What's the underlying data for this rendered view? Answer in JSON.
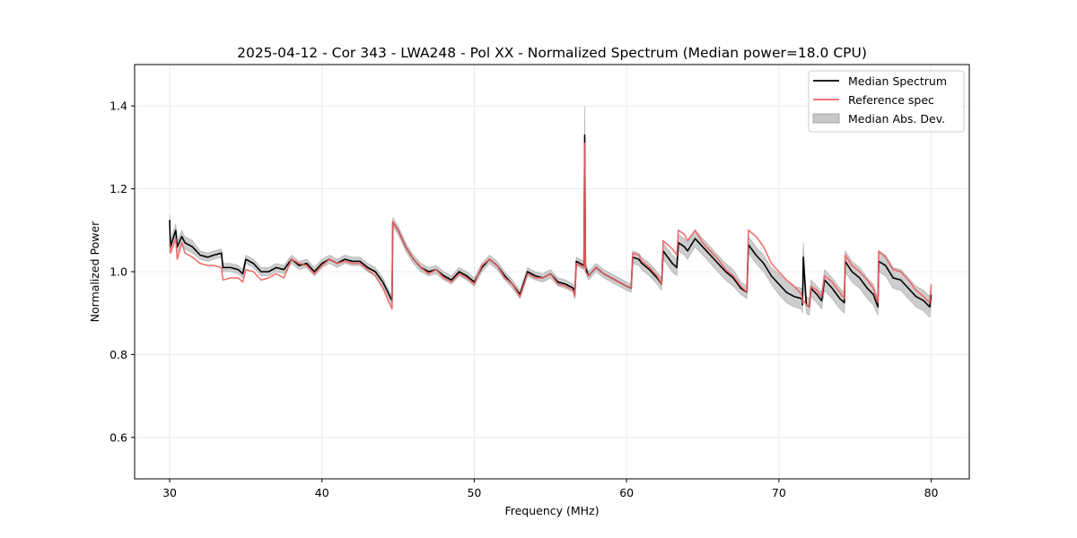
{
  "chart_data": {
    "type": "line",
    "title": "2025-04-12 - Cor 343 - LWA248 - Pol XX - Normalized Spectrum (Median power=18.0 CPU)",
    "xlabel": "Frequency (MHz)",
    "ylabel": "Normalized Power",
    "xlim": [
      27.7,
      82.5
    ],
    "ylim": [
      0.5,
      1.5
    ],
    "xticks": [
      30,
      40,
      50,
      60,
      70,
      80
    ],
    "yticks": [
      0.6,
      0.8,
      1.0,
      1.2,
      1.4
    ],
    "grid": true,
    "legend_position": "top-right",
    "legend": [
      "Median Spectrum",
      "Reference spec",
      "Median Abs. Dev."
    ],
    "colors": {
      "median": "#000000",
      "reference": "#f05f5f",
      "mad": "#c8c8c8",
      "mad_edge": "#a8a8a8"
    },
    "x": [
      30.0,
      30.05,
      30.4,
      30.5,
      30.8,
      31.0,
      31.5,
      32.0,
      32.5,
      32.9,
      33.4,
      33.5,
      34.0,
      34.5,
      34.8,
      35.0,
      35.5,
      36.0,
      36.5,
      37.0,
      37.5,
      38.0,
      38.5,
      39.0,
      39.5,
      40.0,
      40.5,
      41.0,
      41.5,
      42.0,
      42.5,
      43.0,
      43.5,
      44.0,
      44.6,
      44.65,
      45.0,
      45.5,
      46.0,
      46.5,
      47.0,
      47.5,
      48.0,
      48.5,
      49.0,
      49.5,
      50.0,
      50.5,
      51.0,
      51.5,
      52.0,
      52.5,
      53.0,
      53.5,
      54.0,
      54.5,
      55.0,
      55.5,
      56.0,
      56.5,
      56.6,
      56.7,
      57.2,
      57.25,
      57.3,
      57.5,
      58.0,
      58.5,
      59.0,
      59.5,
      60.0,
      60.3,
      60.4,
      60.8,
      61.0,
      61.5,
      62.0,
      62.3,
      62.4,
      63.0,
      63.3,
      63.4,
      63.8,
      64.0,
      64.5,
      65.0,
      65.5,
      66.0,
      66.5,
      67.0,
      67.5,
      67.9,
      68.0,
      68.5,
      69.0,
      69.5,
      70.0,
      70.5,
      71.0,
      71.5,
      71.55,
      71.6,
      71.8,
      72.0,
      72.1,
      72.5,
      72.8,
      73.0,
      73.5,
      74.0,
      74.3,
      74.35,
      74.8,
      75.3,
      75.8,
      76.2,
      76.5,
      76.55,
      77.0,
      77.5,
      78.0,
      78.5,
      79.0,
      79.5,
      79.9,
      80.0
    ],
    "series": [
      {
        "name": "Median Spectrum",
        "values": [
          1.125,
          1.06,
          1.1,
          1.06,
          1.085,
          1.07,
          1.06,
          1.04,
          1.035,
          1.04,
          1.045,
          1.01,
          1.01,
          1.005,
          0.995,
          1.03,
          1.02,
          1.0,
          1.0,
          1.01,
          1.005,
          1.03,
          1.015,
          1.02,
          1.0,
          1.02,
          1.03,
          1.02,
          1.03,
          1.025,
          1.025,
          1.01,
          1.0,
          0.975,
          0.93,
          1.12,
          1.1,
          1.06,
          1.03,
          1.01,
          1.0,
          1.005,
          0.99,
          0.98,
          1.0,
          0.99,
          0.975,
          1.01,
          1.03,
          1.015,
          0.99,
          0.97,
          0.945,
          1.0,
          0.99,
          0.985,
          0.995,
          0.975,
          0.97,
          0.96,
          0.945,
          1.025,
          1.015,
          1.33,
          1.01,
          0.99,
          1.01,
          0.995,
          0.985,
          0.975,
          0.965,
          0.96,
          1.035,
          1.03,
          1.02,
          1.005,
          0.985,
          0.97,
          1.05,
          1.02,
          1.01,
          1.07,
          1.06,
          1.05,
          1.08,
          1.06,
          1.04,
          1.02,
          1.0,
          0.985,
          0.96,
          0.95,
          1.065,
          1.04,
          1.02,
          0.99,
          0.97,
          0.95,
          0.94,
          0.935,
          0.92,
          1.035,
          0.92,
          0.915,
          0.96,
          0.945,
          0.93,
          0.98,
          0.96,
          0.935,
          0.925,
          1.025,
          1.0,
          0.985,
          0.96,
          0.945,
          0.915,
          1.025,
          1.015,
          0.985,
          0.98,
          0.96,
          0.94,
          0.93,
          0.915,
          0.945
        ]
      },
      {
        "name": "Reference spec",
        "values": [
          1.07,
          1.045,
          1.08,
          1.03,
          1.07,
          1.045,
          1.035,
          1.02,
          1.015,
          1.015,
          1.01,
          0.98,
          0.985,
          0.985,
          0.975,
          1.005,
          1.0,
          0.98,
          0.985,
          0.995,
          0.985,
          1.03,
          1.02,
          1.015,
          0.995,
          1.015,
          1.03,
          1.02,
          1.025,
          1.02,
          1.02,
          1.005,
          0.99,
          0.96,
          0.91,
          1.12,
          1.1,
          1.06,
          1.03,
          1.01,
          0.995,
          1.005,
          0.985,
          0.975,
          0.995,
          0.985,
          0.97,
          1.015,
          1.03,
          1.015,
          0.985,
          0.97,
          0.94,
          0.995,
          0.985,
          0.985,
          0.995,
          0.97,
          0.965,
          0.955,
          0.94,
          1.02,
          1.01,
          1.31,
          1.0,
          0.99,
          1.01,
          0.995,
          0.985,
          0.975,
          0.965,
          0.96,
          1.045,
          1.04,
          1.025,
          1.01,
          0.99,
          0.97,
          1.075,
          1.055,
          1.04,
          1.1,
          1.09,
          1.075,
          1.1,
          1.07,
          1.05,
          1.03,
          1.005,
          0.99,
          0.965,
          0.95,
          1.1,
          1.085,
          1.06,
          1.02,
          1.0,
          0.98,
          0.965,
          0.945,
          0.925,
          0.93,
          0.92,
          0.915,
          0.965,
          0.955,
          0.94,
          0.99,
          0.975,
          0.95,
          0.935,
          1.04,
          1.015,
          1.0,
          0.98,
          0.96,
          0.925,
          1.05,
          1.035,
          1.005,
          1.0,
          0.98,
          0.955,
          0.94,
          0.925,
          0.97
        ]
      }
    ],
    "mad_band": {
      "lower": [
        1.11,
        1.045,
        1.085,
        1.045,
        1.07,
        1.055,
        1.045,
        1.03,
        1.025,
        1.03,
        1.035,
        1.0,
        1.0,
        0.995,
        0.985,
        1.02,
        1.01,
        0.99,
        0.99,
        1.0,
        0.995,
        1.02,
        1.005,
        1.01,
        0.99,
        1.01,
        1.02,
        1.01,
        1.02,
        1.015,
        1.015,
        1.0,
        0.99,
        0.965,
        0.92,
        1.11,
        1.09,
        1.05,
        1.02,
        1.0,
        0.99,
        0.995,
        0.98,
        0.97,
        0.99,
        0.98,
        0.965,
        1.0,
        1.02,
        1.005,
        0.98,
        0.96,
        0.935,
        0.99,
        0.98,
        0.975,
        0.985,
        0.965,
        0.96,
        0.95,
        0.935,
        1.015,
        1.005,
        1.26,
        1.0,
        0.98,
        1.0,
        0.985,
        0.975,
        0.965,
        0.955,
        0.95,
        1.02,
        1.015,
        1.005,
        0.99,
        0.97,
        0.955,
        1.03,
        1.0,
        0.99,
        1.05,
        1.04,
        1.03,
        1.06,
        1.04,
        1.02,
        1.0,
        0.98,
        0.965,
        0.945,
        0.935,
        1.045,
        1.02,
        1.0,
        0.97,
        0.945,
        0.925,
        0.915,
        0.91,
        0.9,
        1.0,
        0.9,
        0.895,
        0.94,
        0.925,
        0.91,
        0.955,
        0.935,
        0.91,
        0.9,
        1.0,
        0.975,
        0.96,
        0.935,
        0.92,
        0.895,
        1.0,
        0.99,
        0.96,
        0.955,
        0.935,
        0.915,
        0.905,
        0.89,
        0.925
      ],
      "upper": [
        1.14,
        1.075,
        1.115,
        1.075,
        1.1,
        1.085,
        1.075,
        1.05,
        1.045,
        1.05,
        1.055,
        1.02,
        1.02,
        1.015,
        1.005,
        1.04,
        1.03,
        1.01,
        1.01,
        1.02,
        1.015,
        1.04,
        1.025,
        1.03,
        1.01,
        1.03,
        1.04,
        1.03,
        1.04,
        1.035,
        1.035,
        1.02,
        1.01,
        0.985,
        0.94,
        1.13,
        1.11,
        1.07,
        1.04,
        1.02,
        1.01,
        1.015,
        1.0,
        0.99,
        1.01,
        1.0,
        0.985,
        1.02,
        1.04,
        1.025,
        1.0,
        0.98,
        0.955,
        1.01,
        1.0,
        0.995,
        1.005,
        0.985,
        0.98,
        0.97,
        0.955,
        1.035,
        1.025,
        1.4,
        1.02,
        1.0,
        1.02,
        1.005,
        0.995,
        0.985,
        0.975,
        0.97,
        1.05,
        1.045,
        1.035,
        1.02,
        1.0,
        0.985,
        1.07,
        1.04,
        1.03,
        1.09,
        1.08,
        1.07,
        1.1,
        1.08,
        1.06,
        1.04,
        1.02,
        1.005,
        0.975,
        0.965,
        1.085,
        1.06,
        1.04,
        1.01,
        0.995,
        0.975,
        0.965,
        0.96,
        0.94,
        1.07,
        0.94,
        0.935,
        0.98,
        0.965,
        0.95,
        1.005,
        0.985,
        0.96,
        0.95,
        1.05,
        1.025,
        1.01,
        0.985,
        0.97,
        0.935,
        1.05,
        1.04,
        1.01,
        1.005,
        0.985,
        0.965,
        0.955,
        0.94,
        0.965
      ]
    }
  }
}
